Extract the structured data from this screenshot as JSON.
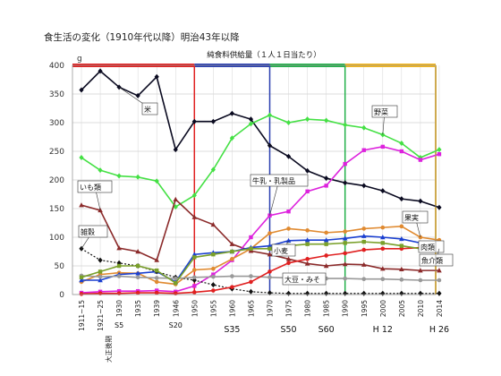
{
  "page": {
    "title": "食生活の変化（1910年代以降）明治43年以降"
  },
  "chart_data": {
    "type": "line",
    "subtitle": "純食料供給量（１人１日当たり）",
    "yunit": "g",
    "ylim": [
      0,
      400
    ],
    "yticks": [
      0,
      50,
      100,
      150,
      200,
      250,
      300,
      350,
      400
    ],
    "grid": true,
    "categories": [
      "1911~15",
      "1921~25",
      "1930",
      "1935",
      "1939",
      "1946",
      "1950",
      "1955",
      "1960",
      "1965",
      "1970",
      "1975",
      "1980",
      "1985",
      "1990",
      "1995",
      "2000",
      "2005",
      "2010",
      "2014"
    ],
    "tick_labels": [
      "1911~15",
      "1921~25",
      "1930",
      "1935",
      "1939",
      "1946",
      "1950",
      "1955",
      "1960",
      "1965",
      "1970",
      "1975",
      "1980",
      "1985",
      "1990",
      "1995",
      "2000",
      "2005",
      "2010",
      "2014"
    ],
    "taisho_note": "大正後期",
    "era_labels": [
      {
        "label": "S5",
        "at": "1930"
      },
      {
        "label": "S20",
        "at": "1946"
      },
      {
        "label": "S35",
        "at": "1960"
      },
      {
        "label": "S50",
        "at": "1975"
      },
      {
        "label": "S60",
        "at": "1985"
      },
      {
        "label": "H 12",
        "at": "2000"
      },
      {
        "label": "H 26",
        "at": "2014"
      }
    ],
    "period_bars": [
      {
        "from": "1911~15",
        "to": "1950",
        "color": "#e02020"
      },
      {
        "from": "1950",
        "to": "1970",
        "color": "#2a3fb0"
      },
      {
        "from": "1970",
        "to": "1990",
        "color": "#22b04a"
      },
      {
        "from": "1990",
        "to": "2014",
        "color": "#f2b51e"
      }
    ],
    "series": [
      {
        "name": "米",
        "color": "#0a0a20",
        "marker": "diamond",
        "values": [
          357,
          390,
          362,
          347,
          380,
          253,
          302,
          302,
          316,
          306,
          260,
          241,
          216,
          203,
          195,
          190,
          181,
          167,
          163,
          152
        ]
      },
      {
        "name": "野菜",
        "color": "#44e044",
        "marker": "diamond",
        "values": [
          239,
          217,
          207,
          205,
          198,
          153,
          173,
          218,
          273,
          298,
          313,
          300,
          306,
          304,
          296,
          291,
          279,
          264,
          239,
          253
        ]
      },
      {
        "name": "いも類",
        "color": "#8b2a2a",
        "marker": "triangle",
        "values": [
          156,
          147,
          81,
          75,
          60,
          166,
          135,
          122,
          88,
          76,
          70,
          62,
          54,
          50,
          53,
          52,
          45,
          44,
          42,
          42
        ]
      },
      {
        "name": "牛乳・乳製品",
        "color": "#dd22dd",
        "marker": "square",
        "values": [
          3,
          5,
          6,
          6,
          7,
          5,
          15,
          35,
          60,
          100,
          138,
          145,
          180,
          190,
          228,
          252,
          258,
          250,
          235,
          245
        ]
      },
      {
        "name": "果実",
        "color": "#e08a30",
        "marker": "circle",
        "values": [
          22,
          35,
          38,
          37,
          22,
          18,
          43,
          45,
          62,
          80,
          107,
          115,
          112,
          108,
          110,
          115,
          117,
          119,
          100,
          95
        ]
      },
      {
        "name": "小麦",
        "color": "#1a3fd0",
        "marker": "triangle",
        "values": [
          25,
          25,
          35,
          37,
          40,
          22,
          70,
          73,
          75,
          82,
          85,
          94,
          95,
          95,
          98,
          102,
          100,
          97,
          90,
          82
        ]
      },
      {
        "name": "雑穀",
        "color": "#111111",
        "marker": "diamond",
        "values": [
          80,
          60,
          55,
          50,
          40,
          30,
          25,
          17,
          10,
          5,
          3,
          2,
          2,
          2,
          2,
          2,
          2,
          2,
          2,
          2
        ]
      },
      {
        "name": "大豆・みそ",
        "color": "#999999",
        "marker": "circle",
        "values": [
          33,
          31,
          32,
          30,
          29,
          28,
          30,
          31,
          32,
          32,
          30,
          29,
          29,
          28,
          28,
          27,
          27,
          26,
          25,
          25
        ]
      },
      {
        "name": "肉類",
        "color": "#e02020",
        "marker": "circle",
        "values": [
          1,
          2,
          2,
          3,
          3,
          2,
          4,
          7,
          13,
          22,
          40,
          55,
          62,
          68,
          72,
          78,
          80,
          80,
          82,
          84
        ]
      },
      {
        "name": "魚介類",
        "color": "#7aa02a",
        "marker": "square",
        "values": [
          30,
          40,
          50,
          50,
          42,
          20,
          65,
          70,
          75,
          80,
          80,
          85,
          88,
          88,
          90,
          92,
          90,
          85,
          80,
          80
        ]
      }
    ]
  }
}
